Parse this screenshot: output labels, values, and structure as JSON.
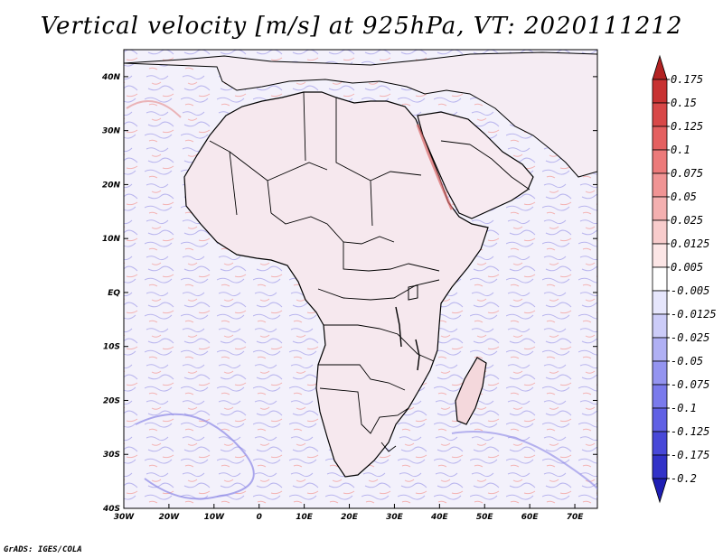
{
  "title": "Vertical velocity [m/s] at 925hPa, VT: 2020111212",
  "credit": "GrADS: IGES/COLA",
  "map": {
    "lat_labels": [
      "40N",
      "30N",
      "20N",
      "10N",
      "EQ",
      "10S",
      "20S",
      "30S",
      "40S"
    ],
    "lat_values": [
      40,
      30,
      20,
      10,
      0,
      -10,
      -20,
      -30,
      -40
    ],
    "lon_labels": [
      "30W",
      "20W",
      "10W",
      "0",
      "10E",
      "20E",
      "30E",
      "40E",
      "50E",
      "60E",
      "70E"
    ],
    "lon_values": [
      -30,
      -20,
      -10,
      0,
      10,
      20,
      30,
      40,
      50,
      60,
      70
    ],
    "lon_range": [
      -30,
      75
    ],
    "lat_range": [
      -40,
      45
    ]
  },
  "colorbar": {
    "levels": [
      "0.175",
      "0.15",
      "0.125",
      "0.1",
      "0.075",
      "0.05",
      "0.025",
      "0.0125",
      "0.005",
      "-0.005",
      "-0.0125",
      "-0.025",
      "-0.05",
      "-0.075",
      "-0.1",
      "-0.125",
      "-0.175",
      "-0.2"
    ],
    "colors": [
      "#b22222",
      "#c83232",
      "#d84848",
      "#e46060",
      "#ec7a7a",
      "#f09494",
      "#f4b0b0",
      "#f8cccc",
      "#fce6e6",
      "#ffffff",
      "#e6e6fc",
      "#ccccf8",
      "#b0b0f4",
      "#9494f0",
      "#7a7aec",
      "#6060e4",
      "#4848d8",
      "#3232c8",
      "#1e1eb4"
    ]
  }
}
